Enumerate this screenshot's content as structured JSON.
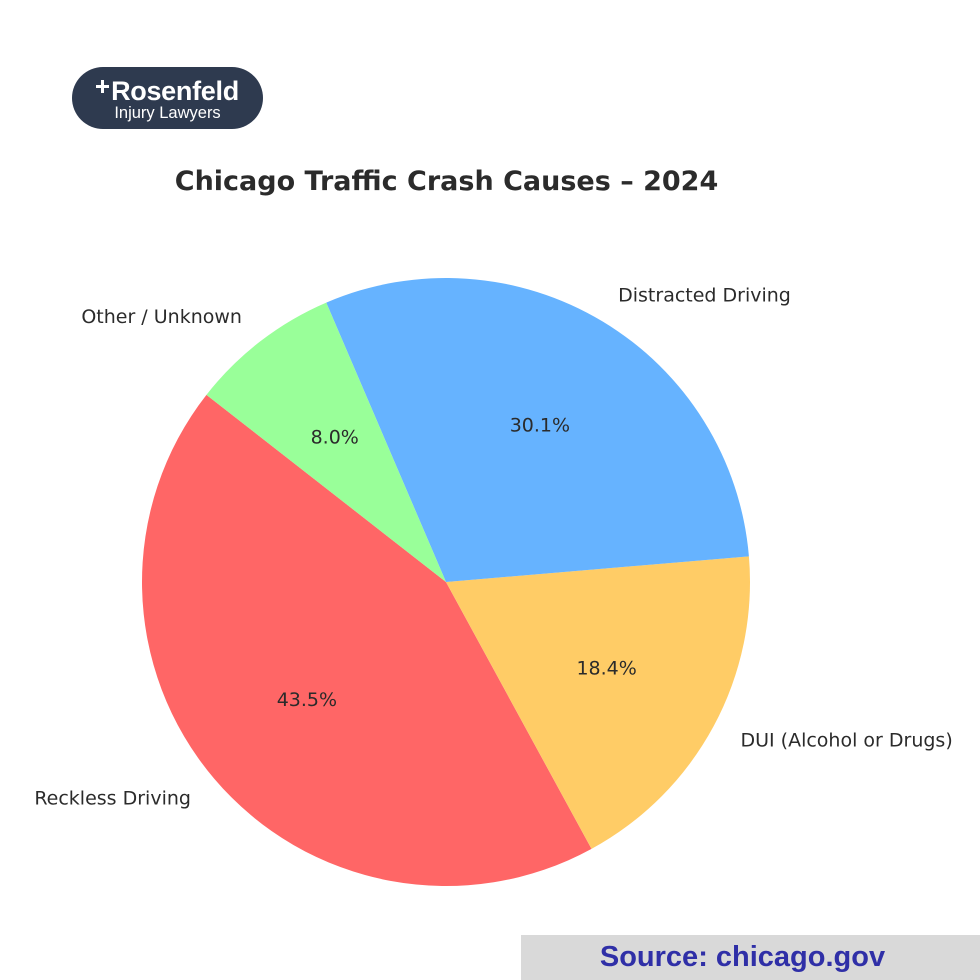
{
  "logo": {
    "brand": "Rosenfeld",
    "tagline": "Injury Lawyers"
  },
  "source": "Source: chicago.gov",
  "colors": {
    "logo_bg": "#2e3a4f",
    "source_bg": "#d9d9d9",
    "source_text": "#2f2fa7"
  },
  "chart_data": {
    "type": "pie",
    "title": "Chicago Traffic Crash Causes – 2024",
    "start_angle_deg": 142,
    "direction": "counterclockwise",
    "slices": [
      {
        "label": "Reckless Driving",
        "value": 43.5,
        "pct_label": "43.5%",
        "color": "#ff6666"
      },
      {
        "label": "DUI (Alcohol or Drugs)",
        "value": 18.4,
        "pct_label": "18.4%",
        "color": "#ffcc66"
      },
      {
        "label": "Distracted Driving",
        "value": 30.1,
        "pct_label": "30.1%",
        "color": "#66b3ff"
      },
      {
        "label": "Other / Unknown",
        "value": 8.0,
        "pct_label": "8.0%",
        "color": "#99ff99"
      }
    ]
  }
}
